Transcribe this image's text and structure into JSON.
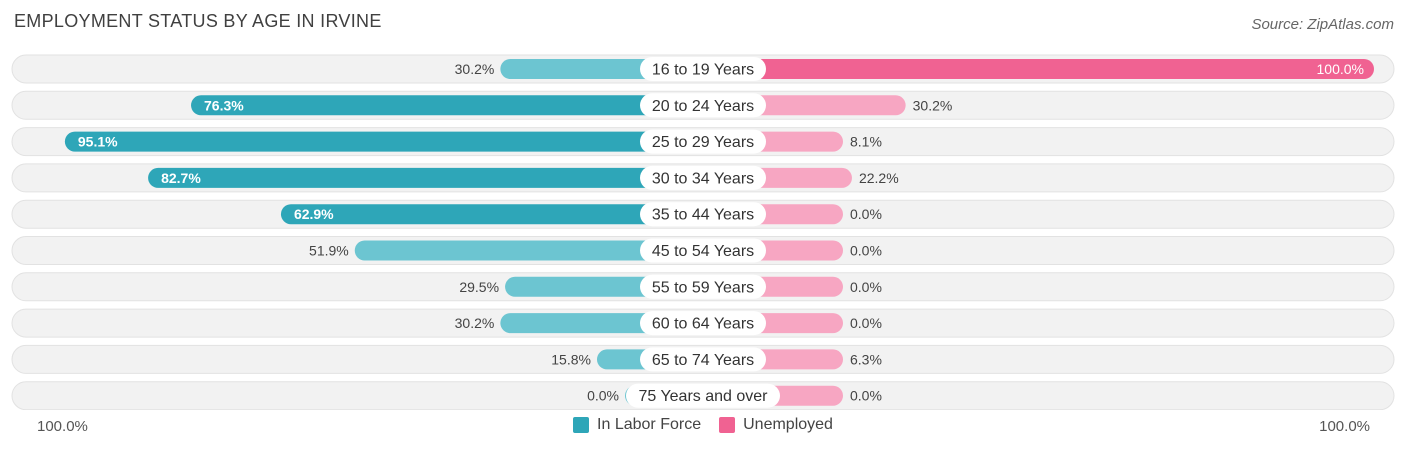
{
  "header": {
    "title": "EMPLOYMENT STATUS BY AGE IN IRVINE",
    "source": "Source: ZipAtlas.com"
  },
  "axis": {
    "left_label": "100.0%",
    "right_label": "100.0%"
  },
  "legend": {
    "items": [
      {
        "label": "In Labor Force",
        "color": "#2ea6b8"
      },
      {
        "label": "Unemployed",
        "color": "#f06292"
      }
    ]
  },
  "colors": {
    "labor_strong": "#2ea6b8",
    "labor_light": "#6cc5d1",
    "unemp_strong": "#f06292",
    "unemp_light": "#f7a6c2",
    "row_bg": "#f2f2f2"
  },
  "chart_data": {
    "type": "bar",
    "orientation": "horizontal-diverging",
    "categories": [
      "16 to 19 Years",
      "20 to 24 Years",
      "25 to 29 Years",
      "30 to 34 Years",
      "35 to 44 Years",
      "45 to 54 Years",
      "55 to 59 Years",
      "60 to 64 Years",
      "65 to 74 Years",
      "75 Years and over"
    ],
    "series": [
      {
        "name": "In Labor Force",
        "values": [
          30.2,
          76.3,
          95.1,
          82.7,
          62.9,
          51.9,
          29.5,
          30.2,
          15.8,
          0.0
        ],
        "labels": [
          "30.2%",
          "76.3%",
          "95.1%",
          "82.7%",
          "62.9%",
          "51.9%",
          "29.5%",
          "30.2%",
          "15.8%",
          "0.0%"
        ]
      },
      {
        "name": "Unemployed",
        "values": [
          100.0,
          30.2,
          8.1,
          22.2,
          0.0,
          0.0,
          0.0,
          0.0,
          6.3,
          0.0
        ],
        "labels": [
          "100.0%",
          "30.2%",
          "8.1%",
          "22.2%",
          "0.0%",
          "0.0%",
          "0.0%",
          "0.0%",
          "6.3%",
          "0.0%"
        ]
      }
    ],
    "xlim": [
      0,
      100
    ],
    "legend_position": "bottom-center"
  }
}
